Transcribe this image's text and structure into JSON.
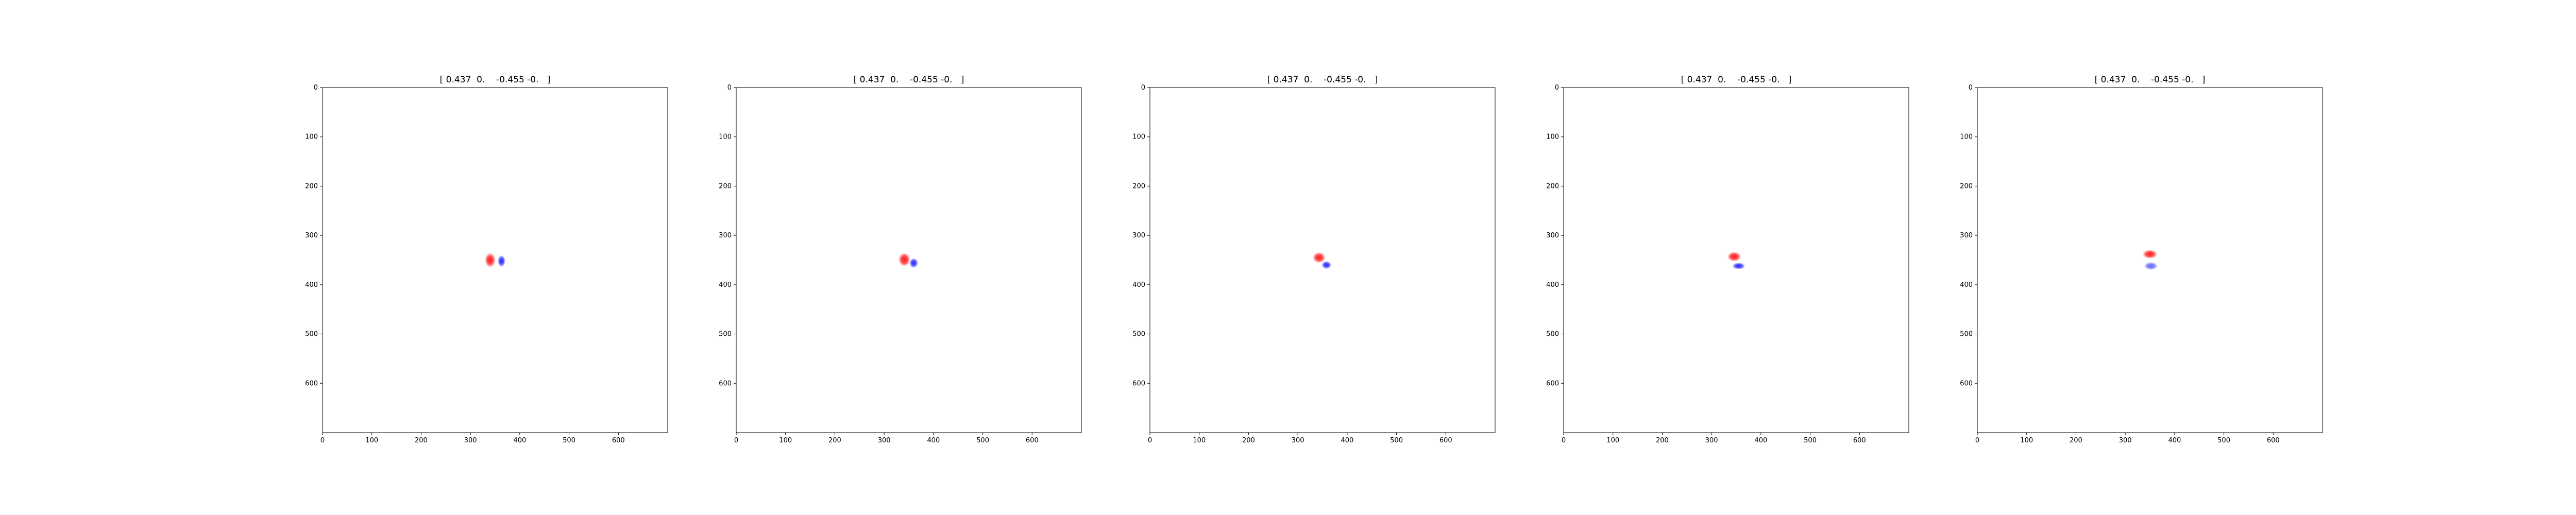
{
  "chart_data": [
    {
      "type": "heatmap",
      "title": "[ 0.437  0.    -0.455 -0.   ]",
      "xlim": [
        0,
        700
      ],
      "ylim": [
        700,
        0
      ],
      "x_ticks": [
        "0",
        "100",
        "200",
        "300",
        "400",
        "500",
        "600"
      ],
      "y_ticks": [
        "0",
        "100",
        "200",
        "300",
        "400",
        "500",
        "600"
      ],
      "colormap": "bwr",
      "colors": {
        "positive": "#ff0000",
        "negative": "#0000ff",
        "zero": "#ffffff"
      },
      "blobs": [
        {
          "sign": "positive",
          "x": 340,
          "y": 350,
          "rx": 11,
          "ry": 15,
          "strength": 0.9
        },
        {
          "sign": "negative",
          "x": 363,
          "y": 352,
          "rx": 8,
          "ry": 12,
          "strength": 0.85
        }
      ]
    },
    {
      "type": "heatmap",
      "title": "[ 0.437  0.    -0.455 -0.   ]",
      "xlim": [
        0,
        700
      ],
      "ylim": [
        700,
        0
      ],
      "x_ticks": [
        "0",
        "100",
        "200",
        "300",
        "400",
        "500",
        "600"
      ],
      "y_ticks": [
        "0",
        "100",
        "200",
        "300",
        "400",
        "500",
        "600"
      ],
      "colormap": "bwr",
      "colors": {
        "positive": "#ff0000",
        "negative": "#0000ff",
        "zero": "#ffffff"
      },
      "blobs": [
        {
          "sign": "positive",
          "x": 341,
          "y": 349,
          "rx": 12,
          "ry": 14,
          "strength": 0.9
        },
        {
          "sign": "negative",
          "x": 360,
          "y": 356,
          "rx": 9,
          "ry": 10,
          "strength": 0.85
        }
      ]
    },
    {
      "type": "heatmap",
      "title": "[ 0.437  0.    -0.455 -0.   ]",
      "xlim": [
        0,
        700
      ],
      "ylim": [
        700,
        0
      ],
      "x_ticks": [
        "0",
        "100",
        "200",
        "300",
        "400",
        "500",
        "600"
      ],
      "y_ticks": [
        "0",
        "100",
        "200",
        "300",
        "400",
        "500",
        "600"
      ],
      "colormap": "bwr",
      "colors": {
        "positive": "#ff0000",
        "negative": "#0000ff",
        "zero": "#ffffff"
      },
      "blobs": [
        {
          "sign": "positive",
          "x": 343,
          "y": 345,
          "rx": 13,
          "ry": 11,
          "strength": 0.9
        },
        {
          "sign": "negative",
          "x": 358,
          "y": 360,
          "rx": 10,
          "ry": 8,
          "strength": 0.85
        }
      ]
    },
    {
      "type": "heatmap",
      "title": "[ 0.437  0.    -0.455 -0.   ]",
      "xlim": [
        0,
        700
      ],
      "ylim": [
        700,
        0
      ],
      "x_ticks": [
        "0",
        "100",
        "200",
        "300",
        "400",
        "500",
        "600"
      ],
      "y_ticks": [
        "0",
        "100",
        "200",
        "300",
        "400",
        "500",
        "600"
      ],
      "colormap": "bwr",
      "colors": {
        "positive": "#ff0000",
        "negative": "#0000ff",
        "zero": "#ffffff"
      },
      "blobs": [
        {
          "sign": "positive",
          "x": 346,
          "y": 343,
          "rx": 14,
          "ry": 10,
          "strength": 0.9
        },
        {
          "sign": "negative",
          "x": 355,
          "y": 362,
          "rx": 13,
          "ry": 7,
          "strength": 0.85
        }
      ]
    },
    {
      "type": "heatmap",
      "title": "[ 0.437  0.    -0.455 -0.   ]",
      "xlim": [
        0,
        700
      ],
      "ylim": [
        700,
        0
      ],
      "x_ticks": [
        "0",
        "100",
        "200",
        "300",
        "400",
        "500",
        "600"
      ],
      "y_ticks": [
        "0",
        "100",
        "200",
        "300",
        "400",
        "500",
        "600"
      ],
      "colormap": "bwr",
      "colors": {
        "positive": "#ff0000",
        "negative": "#0000ff",
        "zero": "#ffffff"
      },
      "blobs": [
        {
          "sign": "positive",
          "x": 350,
          "y": 338,
          "rx": 15,
          "ry": 9,
          "strength": 0.9
        },
        {
          "sign": "negative",
          "x": 352,
          "y": 362,
          "rx": 14,
          "ry": 8,
          "strength": 0.6
        }
      ]
    }
  ]
}
